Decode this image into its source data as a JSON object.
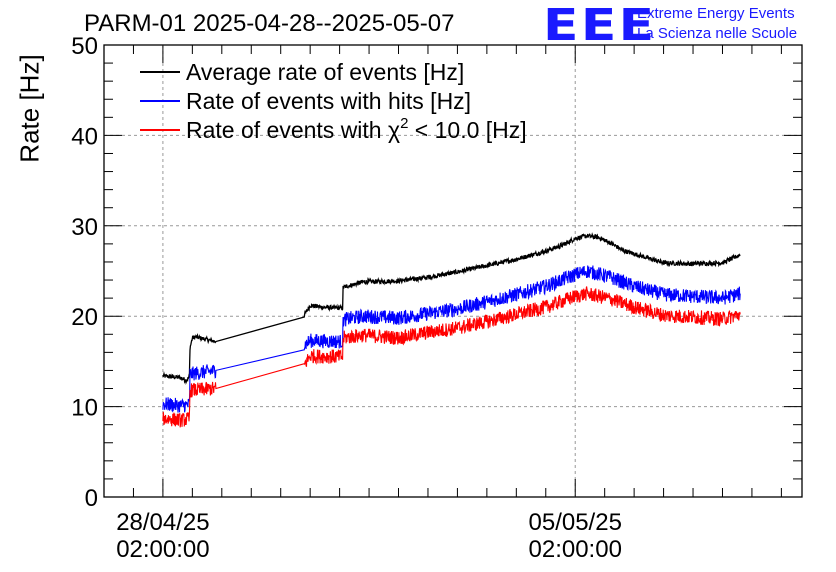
{
  "header": {
    "title": "PARM-01 2025-04-28--2025-05-07",
    "logo": "EEE",
    "logo_line1": "Extreme Energy Events",
    "logo_line2": "La Scienza nelle Scuole"
  },
  "chart_data": {
    "type": "line",
    "title": "PARM-01 2025-04-28--2025-05-07",
    "ylabel": "Rate [Hz]",
    "xlabel": "",
    "ylim": [
      0,
      50
    ],
    "yticks": [
      0,
      10,
      20,
      30,
      40,
      50
    ],
    "xticks": [
      {
        "x": 0,
        "label1": "28/04/25",
        "label2": "02:00:00"
      },
      {
        "x": 7,
        "label1": "05/05/25",
        "label2": "02:00:00"
      }
    ],
    "xlim": [
      -1.0,
      10.85
    ],
    "grid": true,
    "legend": "top-left",
    "series": [
      {
        "name": "Average rate of events [Hz]",
        "color": "#000000",
        "noise": 0.25,
        "x": [
          0.0,
          0.3,
          0.4,
          0.45,
          0.46,
          0.5,
          0.55,
          0.9,
          2.4,
          2.5,
          2.7,
          3.05,
          3.06,
          3.4,
          4.0,
          4.5,
          5.0,
          5.5,
          6.0,
          6.5,
          6.8,
          7.0,
          7.2,
          7.4,
          7.6,
          7.8,
          8.1,
          8.5,
          9.0,
          9.5,
          9.8
        ],
        "y": [
          13.4,
          13.2,
          12.9,
          13.3,
          16.5,
          17.6,
          17.7,
          17.2,
          20.1,
          21.2,
          21.0,
          20.9,
          23.2,
          23.8,
          23.9,
          24.3,
          24.9,
          25.6,
          26.3,
          27.2,
          27.9,
          28.6,
          28.9,
          28.7,
          28.1,
          27.3,
          26.7,
          25.9,
          25.8,
          25.9,
          26.8
        ]
      },
      {
        "name": "Rate of events with hits [Hz]",
        "color": "#0000ff",
        "noise": 0.8,
        "x": [
          0.0,
          0.3,
          0.45,
          0.46,
          0.9,
          2.4,
          2.5,
          3.05,
          3.06,
          3.4,
          4.0,
          4.5,
          5.0,
          5.5,
          6.0,
          6.5,
          7.0,
          7.2,
          7.6,
          8.0,
          8.5,
          9.0,
          9.5,
          9.8
        ],
        "y": [
          10.3,
          10.1,
          10.2,
          13.6,
          14.0,
          16.8,
          17.3,
          17.2,
          19.6,
          20.0,
          19.8,
          20.3,
          20.8,
          21.6,
          22.4,
          23.3,
          24.6,
          25.0,
          24.3,
          23.3,
          22.4,
          22.2,
          22.0,
          22.5
        ]
      },
      {
        "name": "Rate of events with χ² < 10.0 [Hz]",
        "color": "#ff0000",
        "noise": 0.8,
        "x": [
          0.0,
          0.3,
          0.45,
          0.46,
          0.9,
          2.4,
          2.5,
          3.05,
          3.06,
          3.4,
          4.0,
          4.5,
          5.0,
          5.5,
          6.0,
          6.5,
          7.0,
          7.2,
          7.6,
          8.0,
          8.5,
          9.0,
          9.5,
          9.8
        ],
        "y": [
          8.7,
          8.5,
          8.6,
          11.8,
          12.0,
          14.6,
          15.6,
          15.5,
          17.6,
          17.9,
          17.6,
          18.2,
          18.7,
          19.4,
          20.2,
          21.0,
          22.2,
          22.5,
          21.9,
          21.0,
          20.1,
          19.9,
          19.7,
          20.2
        ]
      }
    ],
    "legend_entries": [
      {
        "label": "Average rate of events [Hz]",
        "color": "#000000"
      },
      {
        "label": "Rate of events with hits [Hz]",
        "color": "#0000ff"
      },
      {
        "label_pre": "Rate of events with ",
        "label_sym": "χ",
        "label_sup": "2",
        "label_post": " < 10.0 [Hz]",
        "color": "#ff0000"
      }
    ]
  }
}
